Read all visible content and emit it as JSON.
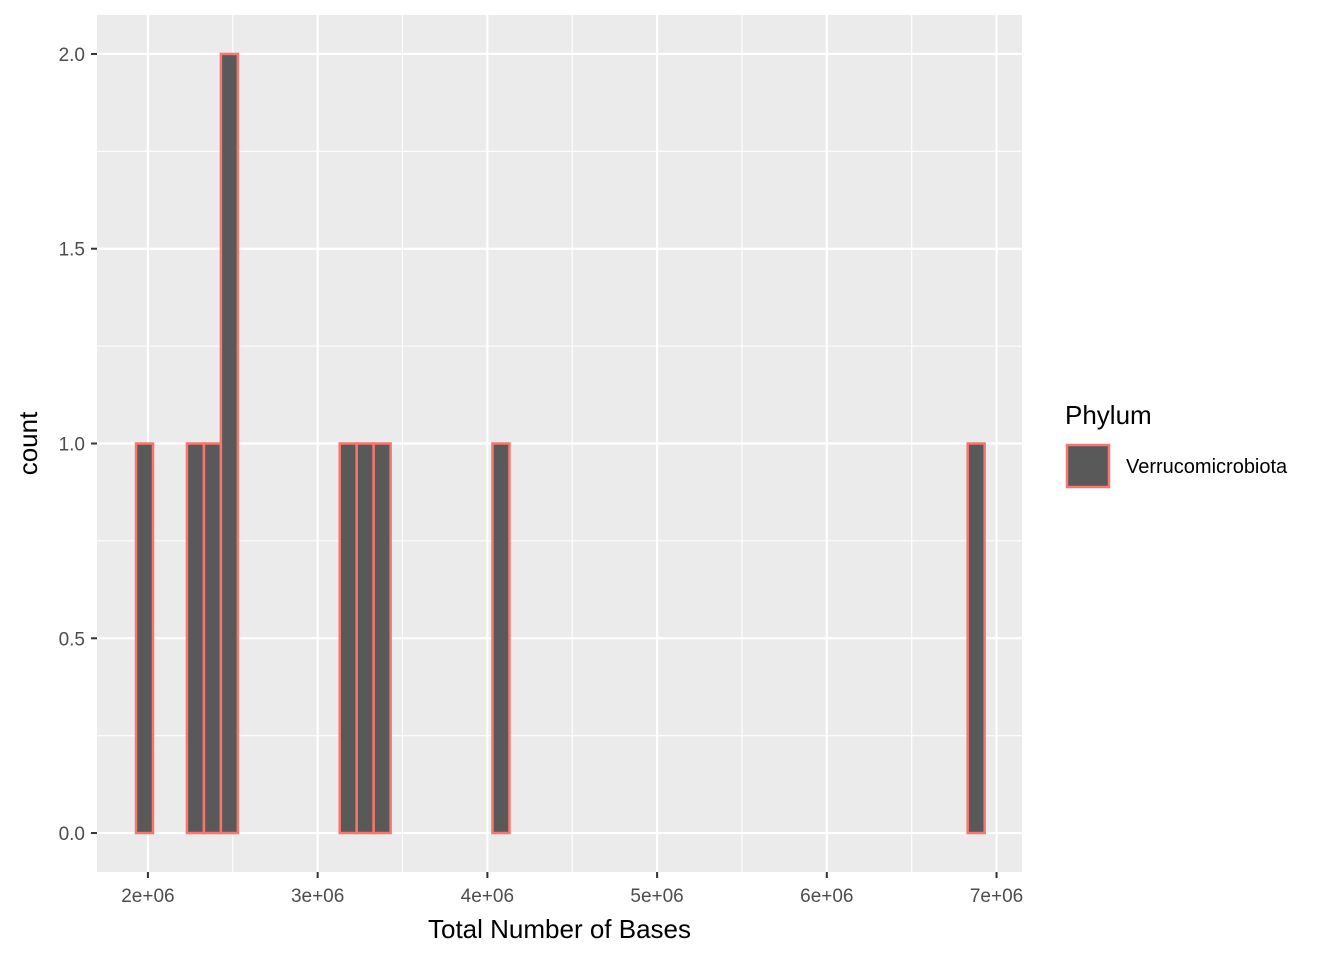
{
  "chart_data": {
    "type": "bar",
    "subtype": "histogram",
    "xlabel": "Total Number of Bases",
    "ylabel": "count",
    "xlim": [
      1700000,
      7150000
    ],
    "ylim": [
      -0.1,
      2.1
    ],
    "x_ticks": [
      2000000,
      3000000,
      4000000,
      5000000,
      6000000,
      7000000
    ],
    "x_tick_labels": [
      "2e+06",
      "3e+06",
      "4e+06",
      "5e+06",
      "6e+06",
      "7e+06"
    ],
    "y_ticks": [
      0,
      0.5,
      1,
      1.5,
      2
    ],
    "y_tick_labels": [
      "0.0",
      "0.5",
      "1.0",
      "1.5",
      "2.0"
    ],
    "bin_width": 100000,
    "bin_start": 1930000,
    "counts": [
      1,
      0,
      0,
      1,
      1,
      2,
      0,
      0,
      0,
      0,
      0,
      0,
      1,
      1,
      1,
      0,
      0,
      0,
      0,
      0,
      0,
      1,
      0,
      0,
      0,
      0,
      0,
      0,
      0,
      0,
      0,
      0,
      0,
      0,
      0,
      0,
      0,
      0,
      0,
      0,
      0,
      0,
      0,
      0,
      0,
      0,
      0,
      0,
      0,
      1
    ],
    "grid": true,
    "fill_color": "#595959",
    "outline_color": "#F8766D",
    "panel_background": "#EBEBEB",
    "gridline_color": "#FFFFFF",
    "legend": {
      "position": "right",
      "title": "Phylum",
      "entries": [
        "Verrucomicrobiota"
      ]
    }
  }
}
